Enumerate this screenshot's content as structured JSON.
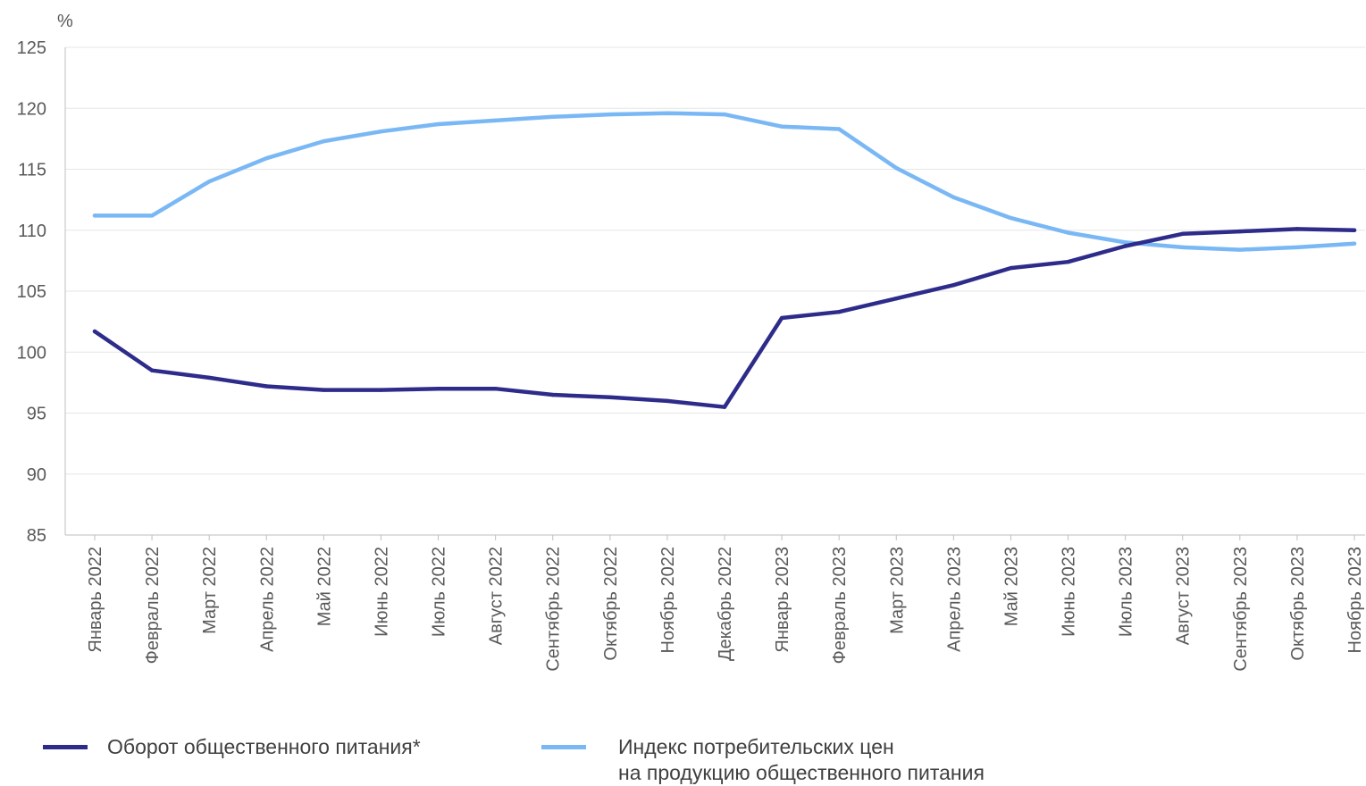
{
  "chart_data": {
    "type": "line",
    "unit_label": "%",
    "ylim": [
      85,
      125
    ],
    "yticks": [
      85,
      90,
      95,
      100,
      105,
      110,
      115,
      120,
      125
    ],
    "grid": true,
    "categories": [
      "Январь 2022",
      "Февраль 2022",
      "Март 2022",
      "Апрель 2022",
      "Май 2022",
      "Июнь 2022",
      "Июль 2022",
      "Август 2022",
      "Сентябрь 2022",
      "Октябрь 2022",
      "Ноябрь 2022",
      "Декабрь 2022",
      "Январь 2023",
      "Февраль 2023",
      "Март 2023",
      "Апрель 2023",
      "Май 2023",
      "Июнь 2023",
      "Июль 2023",
      "Август 2023",
      "Сентябрь 2023",
      "Октябрь 2023",
      "Ноябрь 2023"
    ],
    "series": [
      {
        "name": "Оборот общественного питания*",
        "color": "#2e2c8a",
        "values": [
          101.7,
          98.5,
          97.9,
          97.2,
          96.9,
          96.9,
          97.0,
          97.0,
          96.5,
          96.3,
          96.0,
          95.5,
          102.8,
          103.3,
          104.4,
          105.5,
          106.9,
          107.4,
          108.7,
          109.7,
          109.9,
          110.1,
          110.0
        ]
      },
      {
        "name": "Индекс потребительских цен\nна продукцию общественного питания",
        "color": "#7ab8f5",
        "values": [
          111.2,
          111.2,
          114.0,
          115.9,
          117.3,
          118.1,
          118.7,
          119.0,
          119.3,
          119.5,
          119.6,
          119.5,
          118.5,
          118.3,
          115.1,
          112.7,
          111.0,
          109.8,
          109.0,
          108.6,
          108.4,
          108.6,
          108.9
        ]
      }
    ],
    "legend_position": "bottom"
  }
}
